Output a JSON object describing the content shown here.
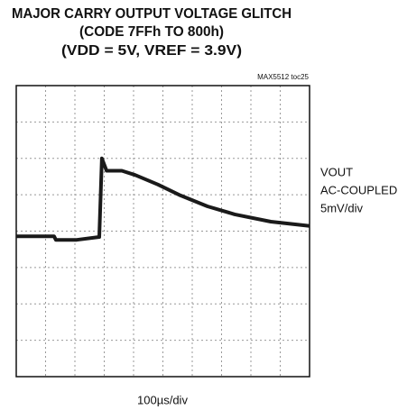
{
  "chart_data": {
    "type": "line",
    "title": "MAJOR CARRY OUTPUT VOLTAGE GLITCH",
    "subtitle": "(CODE 7FFh TO 800h)",
    "conditions": "(VDD = 5V, VREF = 3.9V)",
    "figure_id": "MAX5512 toc25",
    "x_label": "100µs/div",
    "y_label": [
      "VOUT",
      "AC-COUPLED",
      "5mV/div"
    ],
    "xlim": [
      0,
      1000
    ],
    "ylim": [
      -20,
      20
    ],
    "grid": true,
    "x": [
      0,
      129,
      135,
      206,
      283,
      292,
      308,
      360,
      406,
      483,
      560,
      652,
      745,
      868,
      1000
    ],
    "series": [
      {
        "name": "VOUT",
        "color": "#1a1a1a",
        "values": [
          -0.7,
          -0.7,
          -1.2,
          -1.2,
          -0.8,
          10,
          8.3,
          8.3,
          7.7,
          6.4,
          4.9,
          3.4,
          2.3,
          1.3,
          0.7
        ]
      }
    ]
  }
}
